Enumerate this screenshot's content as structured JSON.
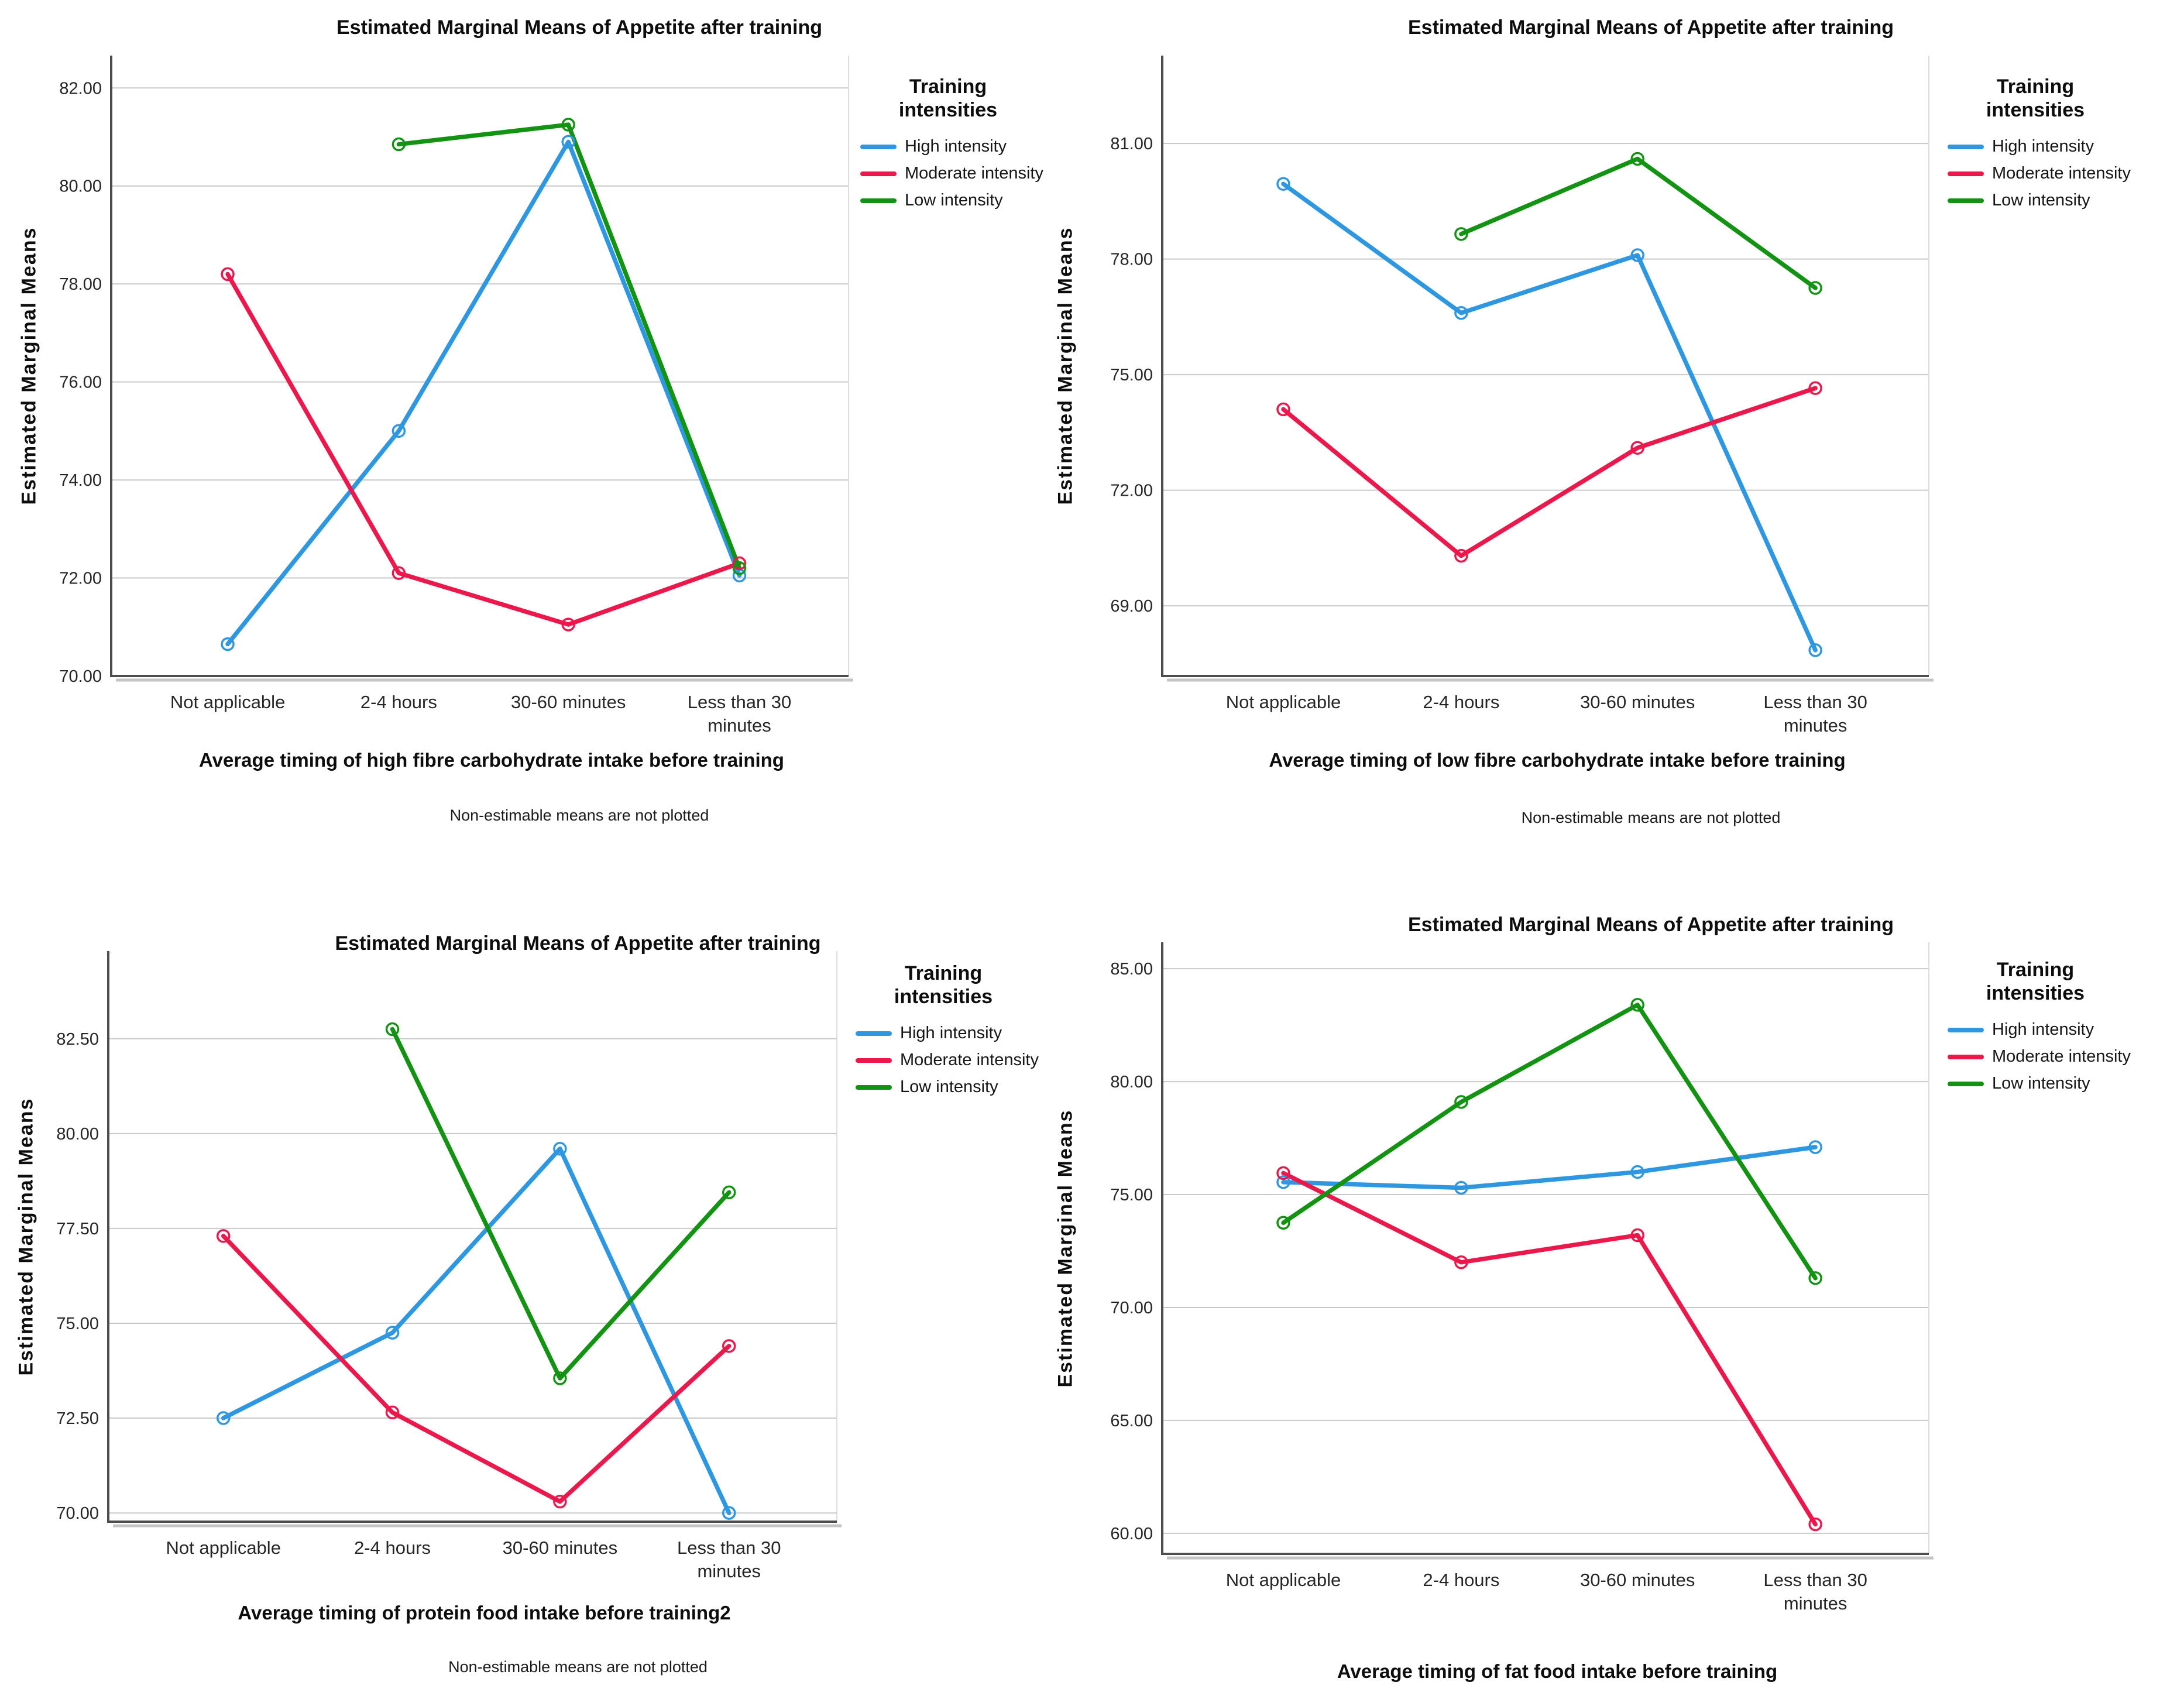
{
  "page": {
    "background": "#ffffff"
  },
  "colors": {
    "high_intensity": "#2E97E2",
    "moderate_intensity": "#EC184C",
    "low_intensity": "#129312",
    "gridline": "#c9c9c9",
    "axis": "#4d4d4d",
    "axis_shadow": "#c4c4c4",
    "text": "#111111"
  },
  "legend": {
    "title_line1": "Training",
    "title_line2": "intensities",
    "entries": [
      {
        "label": "High intensity",
        "color": "#2E97E2"
      },
      {
        "label": "Moderate intensity",
        "color": "#EC184C"
      },
      {
        "label": "Low intensity",
        "color": "#129312"
      }
    ]
  },
  "chart_data": [
    {
      "type": "line",
      "title": "Estimated Marginal Means of Appetite after training",
      "ylabel": "Estimated Marginal Means",
      "xlabel": "Average timing of high fibre carbohydrate intake before training",
      "footnote": "Non-estimable means are not plotted",
      "categories": [
        [
          "Not applicable"
        ],
        [
          "2-4 hours"
        ],
        [
          "30-60 minutes"
        ],
        [
          "Less than 30",
          "minutes"
        ]
      ],
      "yticks": [
        82,
        80,
        78,
        76,
        74,
        72,
        70
      ],
      "ytick_labels": [
        "82.00",
        "80.00",
        "78.00",
        "76.00",
        "74.00",
        "72.00",
        "70.00"
      ],
      "ylim": [
        70,
        82.66
      ],
      "grid": true,
      "legend_position": "right-top",
      "series": [
        {
          "name": "High intensity",
          "color": "#2E97E2",
          "values": [
            70.65,
            75.0,
            80.9,
            72.05
          ]
        },
        {
          "name": "Moderate intensity",
          "color": "#EC184C",
          "values": [
            78.2,
            72.1,
            71.05,
            72.3
          ]
        },
        {
          "name": "Low intensity",
          "color": "#129312",
          "values": [
            null,
            80.85,
            81.25,
            72.2
          ]
        }
      ]
    },
    {
      "type": "line",
      "title": "Estimated Marginal Means of Appetite after training",
      "ylabel": "Estimated Marginal Means",
      "xlabel": "Average timing of low fibre carbohydrate intake before training",
      "footnote": "Non-estimable means are not plotted",
      "categories": [
        [
          "Not applicable"
        ],
        [
          "2-4 hours"
        ],
        [
          "30-60 minutes"
        ],
        [
          "Less than 30",
          "minutes"
        ]
      ],
      "yticks": [
        81,
        78,
        75,
        72,
        69
      ],
      "ytick_labels": [
        "81.00",
        "78.00",
        "75.00",
        "72.00",
        "69.00"
      ],
      "ylim": [
        67.18,
        83.28
      ],
      "grid": true,
      "legend_position": "right-top",
      "series": [
        {
          "name": "High intensity",
          "color": "#2E97E2",
          "values": [
            79.95,
            76.6,
            78.1,
            67.85
          ]
        },
        {
          "name": "Moderate intensity",
          "color": "#EC184C",
          "values": [
            74.1,
            70.3,
            73.1,
            74.65
          ]
        },
        {
          "name": "Low intensity",
          "color": "#129312",
          "values": [
            null,
            78.65,
            80.6,
            77.25
          ]
        }
      ]
    },
    {
      "type": "line",
      "title": "Estimated Marginal Means of Appetite after training",
      "ylabel": "Estimated Marginal Means",
      "xlabel": "Average timing of protein food intake before training2",
      "footnote": "Non-estimable means are not plotted",
      "categories": [
        [
          "Not applicable"
        ],
        [
          "2-4 hours"
        ],
        [
          "30-60 minutes"
        ],
        [
          "Less than 30",
          "minutes"
        ]
      ],
      "yticks": [
        82.5,
        80,
        77.5,
        75,
        72.5,
        70
      ],
      "ytick_labels": [
        "82.50",
        "80.00",
        "77.50",
        "75.00",
        "72.50",
        "70.00"
      ],
      "ylim": [
        69.77,
        84.81
      ],
      "grid": true,
      "legend_position": "right-top",
      "series": [
        {
          "name": "High intensity",
          "color": "#2E97E2",
          "values": [
            72.5,
            74.75,
            79.6,
            70.0
          ]
        },
        {
          "name": "Moderate intensity",
          "color": "#EC184C",
          "values": [
            77.3,
            72.65,
            70.3,
            74.4
          ]
        },
        {
          "name": "Low intensity",
          "color": "#129312",
          "values": [
            null,
            82.75,
            73.55,
            78.45
          ]
        }
      ]
    },
    {
      "type": "line",
      "title": "Estimated Marginal Means of Appetite after training",
      "ylabel": "Estimated Marginal Means",
      "xlabel": "Average timing of fat food intake before training",
      "footnote": "",
      "categories": [
        [
          "Not applicable"
        ],
        [
          "2-4 hours"
        ],
        [
          "30-60 minutes"
        ],
        [
          "Less than 30",
          "minutes"
        ]
      ],
      "yticks": [
        85,
        80,
        75,
        70,
        65,
        60
      ],
      "ytick_labels": [
        "85.00",
        "80.00",
        "75.00",
        "70.00",
        "65.00",
        "60.00"
      ],
      "ylim": [
        59.09,
        86.17
      ],
      "grid": true,
      "legend_position": "right-top",
      "series": [
        {
          "name": "High intensity",
          "color": "#2E97E2",
          "values": [
            75.55,
            75.3,
            76.0,
            77.1
          ]
        },
        {
          "name": "Moderate intensity",
          "color": "#EC184C",
          "values": [
            75.95,
            72.0,
            73.2,
            60.4
          ]
        },
        {
          "name": "Low intensity",
          "color": "#129312",
          "values": [
            73.75,
            79.1,
            83.4,
            71.3
          ]
        }
      ]
    }
  ]
}
